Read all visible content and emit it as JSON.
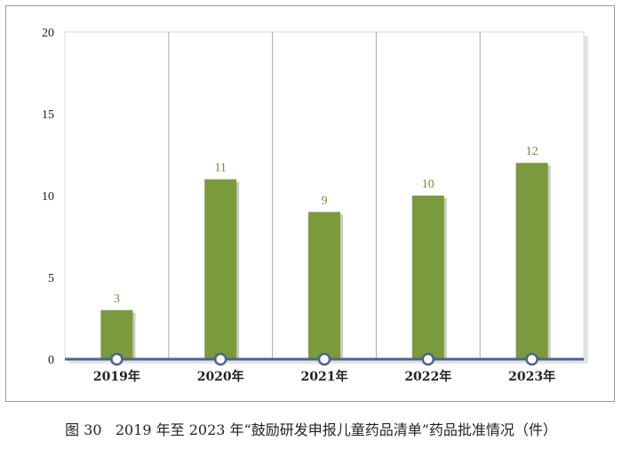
{
  "chart_data": {
    "type": "bar",
    "categories": [
      "2019年",
      "2020年",
      "2021年",
      "2022年",
      "2023年"
    ],
    "values": [
      3,
      11,
      9,
      10,
      12
    ],
    "data_labels": [
      "3",
      "11",
      "9",
      "10",
      "12"
    ],
    "ylim": [
      0,
      20
    ],
    "yticks": [
      "0",
      "5",
      "10",
      "15",
      "20"
    ],
    "xlabel": "",
    "ylabel": "",
    "grid": "vertical category separators",
    "legend": "none",
    "bar_color": "#7a9a3c",
    "label_color": "#6a8f3a",
    "axis_color": "#4a6394"
  },
  "caption": {
    "figure_number": "图 30",
    "text": "2019 年至 2023 年“鼓励研发申报儿童药品清单”药品批准情况（件）"
  }
}
